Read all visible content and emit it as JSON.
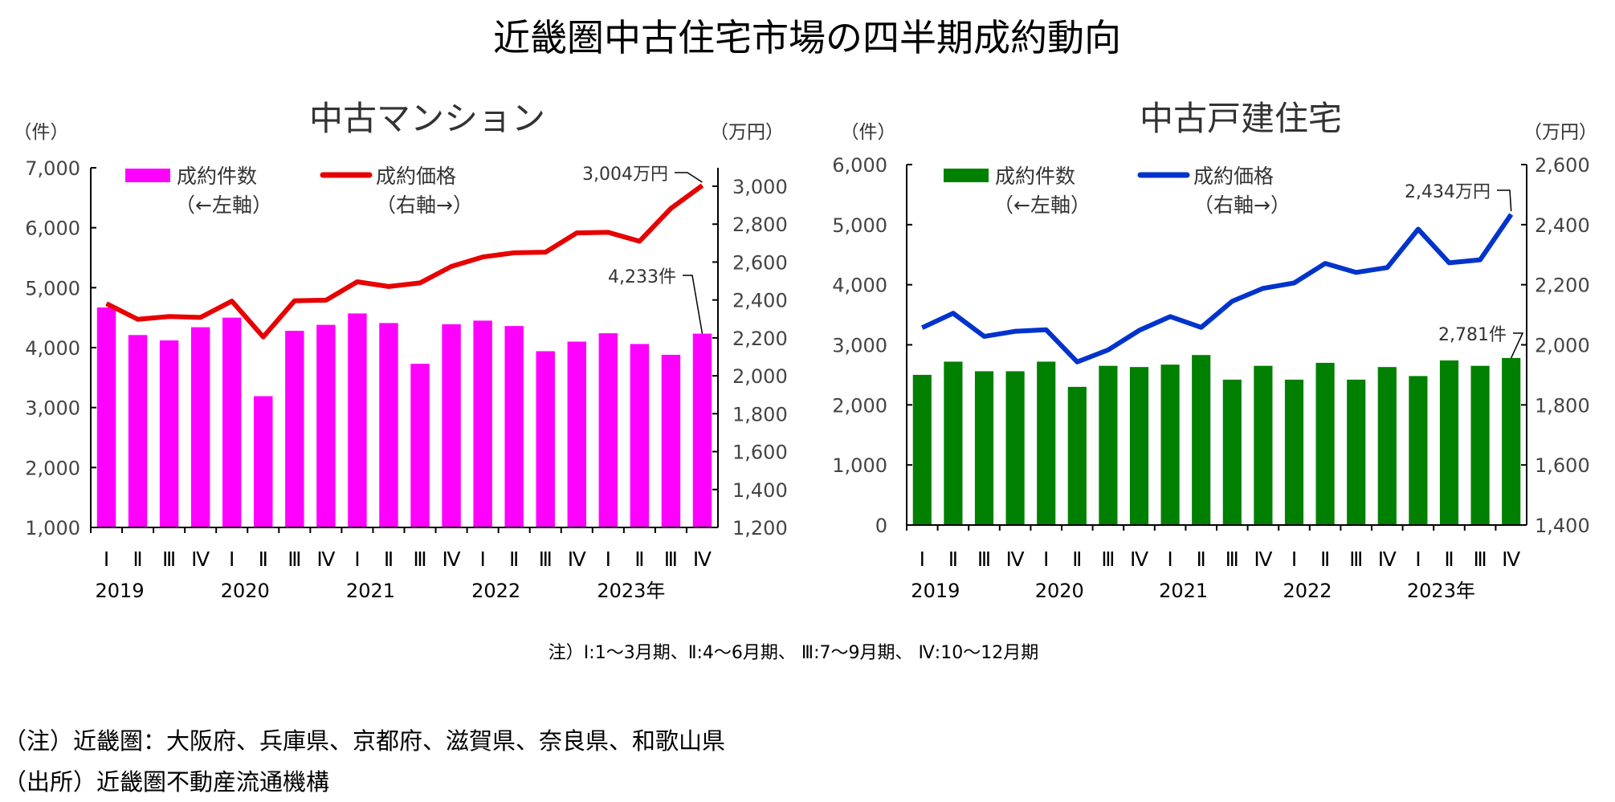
{
  "title": "近畿圏中古住宅市場の四半期成約動向",
  "legend": {
    "count_label": "成約件数",
    "count_axis": "（←左軸）",
    "price_label": "成約価格",
    "price_axis": "（右軸→）"
  },
  "quarter_labels": [
    "Ⅰ",
    "Ⅱ",
    "Ⅲ",
    "Ⅳ",
    "Ⅰ",
    "Ⅱ",
    "Ⅲ",
    "Ⅳ",
    "Ⅰ",
    "Ⅱ",
    "Ⅲ",
    "Ⅳ",
    "Ⅰ",
    "Ⅱ",
    "Ⅲ",
    "Ⅳ",
    "Ⅰ",
    "Ⅱ",
    "Ⅲ",
    "Ⅳ"
  ],
  "year_labels": [
    "2019",
    "2020",
    "2021",
    "2022",
    "2023年"
  ],
  "period_note": "注）Ⅰ:1～3月期、Ⅱ:4～6月期、 Ⅲ:7～9月期、 Ⅳ:10～12月期",
  "footnotes": [
    "（注）近畿圏：大阪府、兵庫県、京都府、滋賀県、奈良県、和歌山県",
    "（出所）近畿圏不動産流通機構"
  ],
  "chart_data": [
    {
      "type": "bar+line",
      "title": "中古マンション",
      "ylabel_left": "（件）",
      "ylabel_right": "（万円）",
      "ylim_left": [
        1000,
        7000
      ],
      "yticks_left": [
        "1,000",
        "2,000",
        "3,000",
        "4,000",
        "5,000",
        "6,000",
        "7,000"
      ],
      "ylim_right": [
        1200,
        3100
      ],
      "yticks_right": [
        "1,200",
        "1,400",
        "1,600",
        "1,800",
        "2,000",
        "2,200",
        "2,400",
        "2,600",
        "2,800",
        "3,000"
      ],
      "bar_color": "#FF00FF",
      "line_color": "#E60000",
      "counts": [
        4670,
        4210,
        4120,
        4340,
        4500,
        3190,
        4280,
        4380,
        4570,
        4410,
        3730,
        4390,
        4450,
        4360,
        3940,
        4100,
        4240,
        4060,
        3880,
        4233
      ],
      "prices": [
        2381,
        2298,
        2313,
        2308,
        2394,
        2205,
        2396,
        2399,
        2496,
        2471,
        2490,
        2577,
        2627,
        2649,
        2652,
        2754,
        2757,
        2710,
        2883,
        3004
      ],
      "count_annotation": "4,233件",
      "price_annotation": "3,004万円",
      "legend_placement": "top"
    },
    {
      "type": "bar+line",
      "title": "中古戸建住宅",
      "ylabel_left": "（件）",
      "ylabel_right": "（万円）",
      "ylim_left": [
        0,
        6000
      ],
      "yticks_left": [
        "0",
        "1,000",
        "2,000",
        "3,000",
        "4,000",
        "5,000",
        "6,000"
      ],
      "ylim_right": [
        1400,
        2600
      ],
      "yticks_right": [
        "1,400",
        "1,600",
        "1,800",
        "2,000",
        "2,200",
        "2,400",
        "2,600"
      ],
      "bar_color": "#008000",
      "line_color": "#0033CC",
      "counts": [
        2500,
        2720,
        2560,
        2560,
        2720,
        2300,
        2650,
        2630,
        2670,
        2830,
        2420,
        2650,
        2420,
        2700,
        2420,
        2630,
        2480,
        2740,
        2650,
        2781
      ],
      "prices": [
        2057,
        2105,
        2028,
        2045,
        2050,
        1943,
        1983,
        2048,
        2094,
        2058,
        2145,
        2188,
        2206,
        2271,
        2241,
        2257,
        2385,
        2273,
        2283,
        2434
      ],
      "count_annotation": "2,781件",
      "price_annotation": "2,434万円",
      "legend_placement": "top"
    }
  ]
}
